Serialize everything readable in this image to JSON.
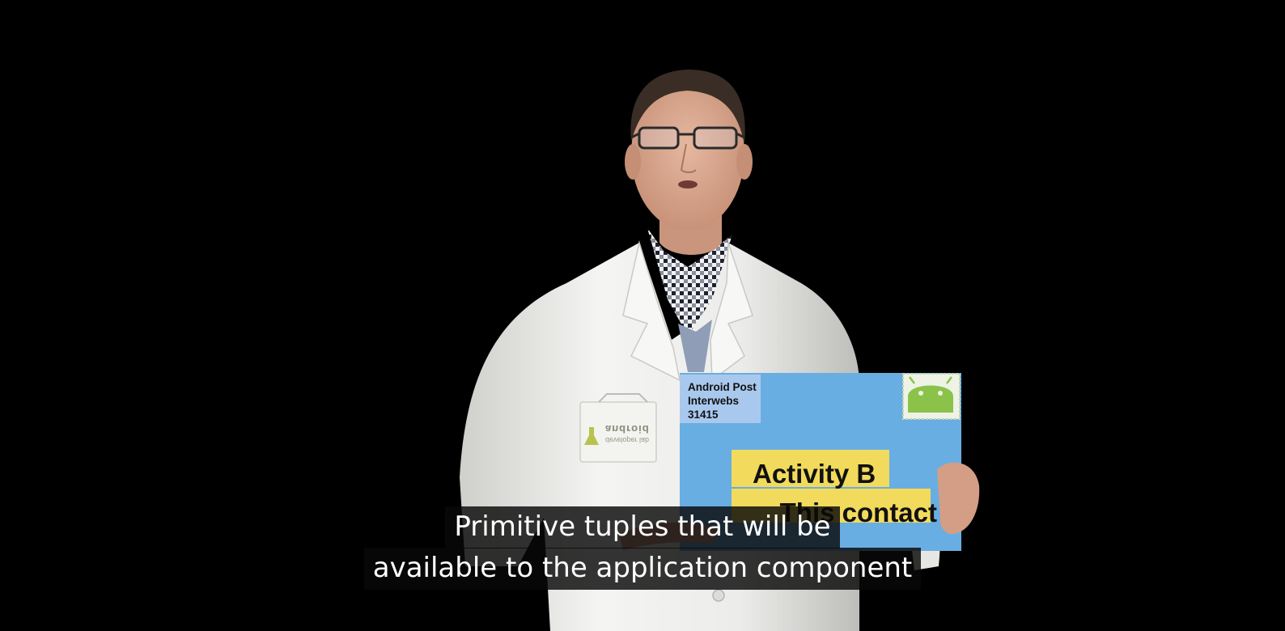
{
  "video": {
    "background_color": "#000000",
    "subject": {
      "coat_color": "#eeeeec",
      "skin_color": "#d8a88e",
      "hair_color": "#3a2d26"
    },
    "badge": {
      "logo_text": "android",
      "sub_text": "developer lab"
    },
    "envelope": {
      "color": "#69aee2",
      "return_address": [
        "Android Post",
        "Interwebs",
        "31415"
      ],
      "return_address_bg": "#a9c8ee",
      "stamp_icon": "android-robot-icon",
      "stamp_color": "#8bc34a",
      "label_color": "#f2da5c",
      "label_1": "Activity B",
      "label_2": "This contact"
    }
  },
  "captions": {
    "line_1": "Primitive tuples that will be",
    "line_2": "available to the application component"
  }
}
